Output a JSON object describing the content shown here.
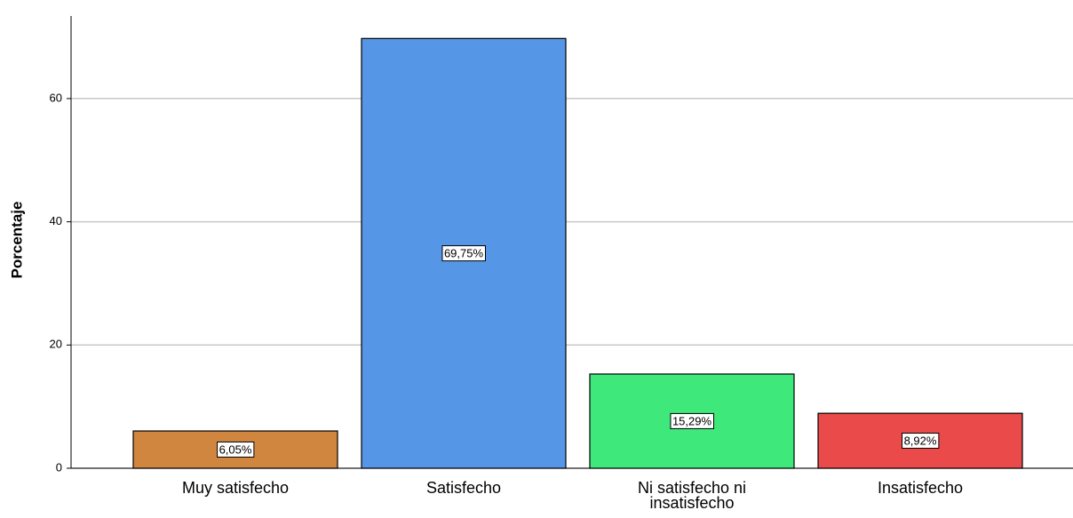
{
  "chart_data": {
    "type": "bar",
    "y_label": "Porcentaje",
    "categories": [
      "Muy satisfecho",
      "Satisfecho",
      "Ni satisfecho ni insatisfecho",
      "Insatisfecho"
    ],
    "values": [
      6.05,
      69.75,
      15.29,
      8.92
    ],
    "value_labels": [
      "6,05%",
      "69,75%",
      "15,29%",
      "8,92%"
    ],
    "colors": [
      "#d1863f",
      "#5596e6",
      "#3fe87b",
      "#eb4a4a"
    ],
    "ylim": [
      0,
      73.4
    ],
    "yticks": [
      0,
      20,
      40,
      60
    ],
    "grid": true
  }
}
